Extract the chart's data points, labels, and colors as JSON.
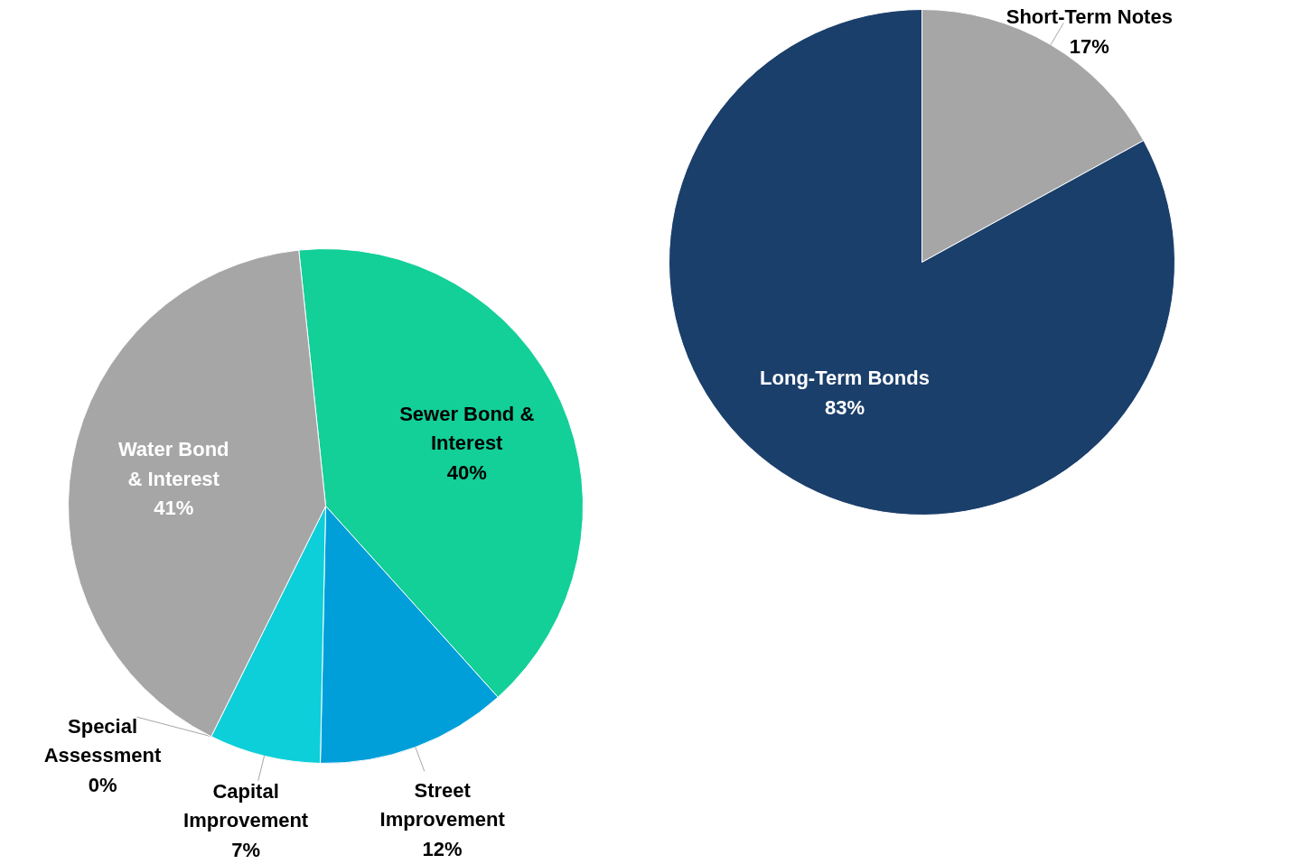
{
  "chart_data": [
    {
      "type": "pie",
      "categories": [
        "Sewer Bond & Interest",
        "Street Improvement",
        "Capital Improvement",
        "Special Assessment",
        "Water Bond & Interest"
      ],
      "values": [
        40,
        12,
        7,
        0,
        41
      ],
      "colors": [
        "#13cf98",
        "#009fd9",
        "#0dcfd9",
        "#1b3f6b",
        "#a6a6a6"
      ],
      "value_labels": [
        "40%",
        "12%",
        "7%",
        "0%",
        "41%"
      ]
    },
    {
      "type": "pie",
      "categories": [
        "Short-Term Notes",
        "Long-Term Bonds"
      ],
      "values": [
        17,
        83
      ],
      "colors": [
        "#a6a6a6",
        "#1b3f6b"
      ],
      "value_labels": [
        "17%",
        "83%"
      ]
    }
  ]
}
